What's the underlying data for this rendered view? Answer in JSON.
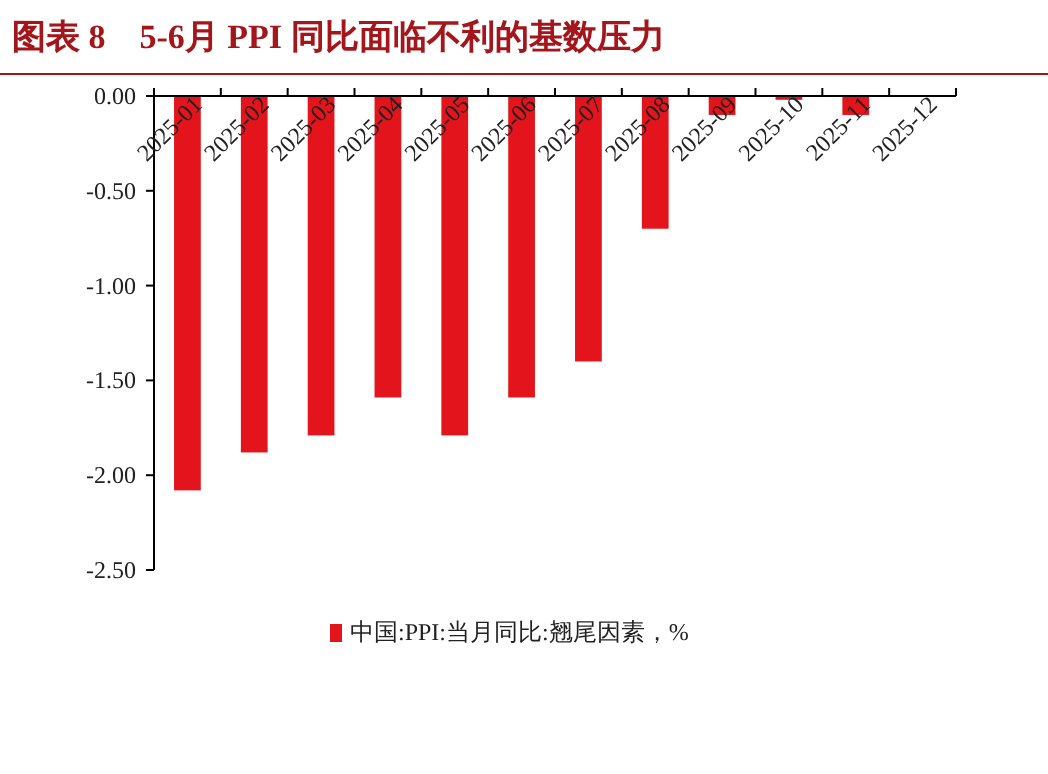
{
  "chart_data": {
    "type": "bar",
    "title": "图表 8　5-6月 PPI 同比面临不利的基数压力",
    "categories": [
      "2025-01",
      "2025-02",
      "2025-03",
      "2025-04",
      "2025-05",
      "2025-06",
      "2025-07",
      "2025-08",
      "2025-09",
      "2025-10",
      "2025-11",
      "2025-12"
    ],
    "series": [
      {
        "name": "中国:PPI:当月同比:翘尾因素，%",
        "color": "#e3141b",
        "values": [
          -2.08,
          -1.88,
          -1.79,
          -1.59,
          -1.79,
          -1.59,
          -1.4,
          -0.7,
          -0.1,
          -0.02,
          -0.1,
          null
        ]
      }
    ],
    "ylim": [
      -2.5,
      0
    ],
    "yticks": [
      {
        "value": 0,
        "label": "0.00"
      },
      {
        "value": -0.5,
        "label": "-0.50"
      },
      {
        "value": -1,
        "label": "-1.00"
      },
      {
        "value": -1.5,
        "label": "-1.50"
      },
      {
        "value": -2,
        "label": "-2.00"
      },
      {
        "value": -2.5,
        "label": "-2.50"
      }
    ],
    "grid": false,
    "legend": "bottom"
  }
}
